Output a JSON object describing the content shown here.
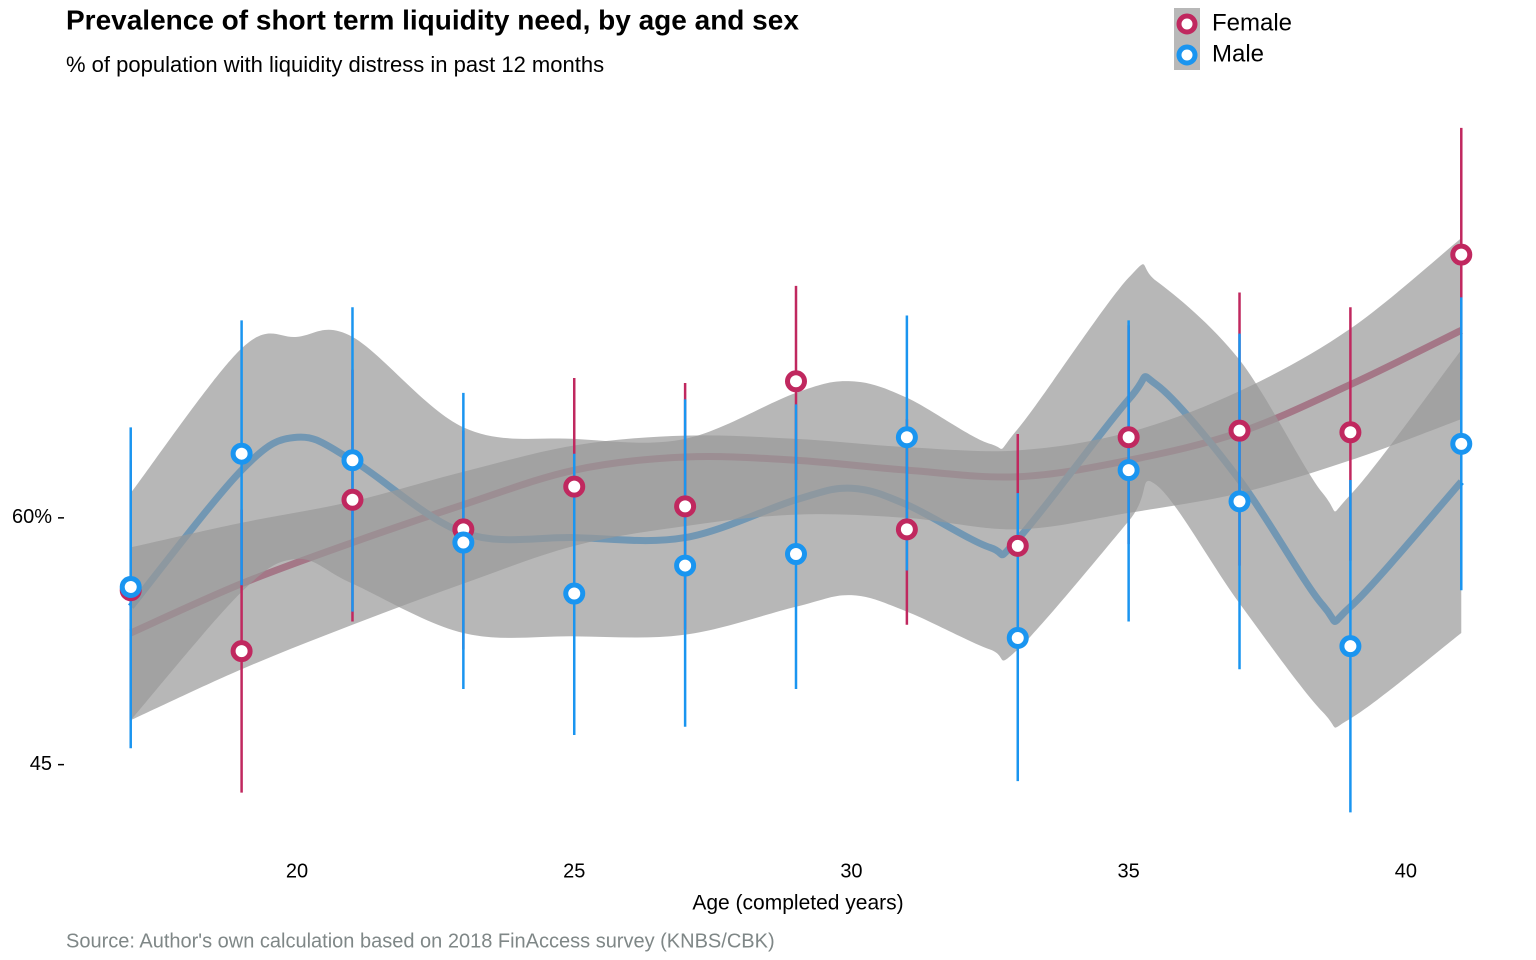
{
  "chart_data": {
    "type": "scatter",
    "title": "Prevalence of short term liquidity need, by age and sex",
    "subtitle": "% of population with liquidity distress in past 12 months",
    "x_label": "Age (completed years)",
    "caption": "Source: Author's own calculation based on 2018 FinAccess survey (KNBS/CBK)",
    "xlim": [
      16.5,
      41.5
    ],
    "xticks": [
      20,
      25,
      30,
      35,
      40
    ],
    "ylim": [
      42,
      84
    ],
    "yticks": [
      45,
      {
        "value": 60,
        "label": "60%"
      }
    ],
    "band_color": "#999999",
    "series": [
      {
        "name": "Female",
        "color": "#c0285f",
        "x": [
          17,
          19,
          21,
          23,
          25,
          27,
          29,
          31,
          33,
          35,
          37,
          39,
          41
        ],
        "values": [
          55.6,
          51.9,
          61.1,
          59.3,
          61.9,
          60.7,
          68.3,
          59.3,
          58.3,
          64.9,
          65.3,
          65.2,
          76.0
        ],
        "upper": [
          63.5,
          60.5,
          69.0,
          65.3,
          68.5,
          68.2,
          74.1,
          66.0,
          65.1,
          71.7,
          73.7,
          72.8,
          83.7
        ],
        "lower": [
          47.7,
          43.3,
          53.7,
          52.0,
          55.6,
          53.2,
          62.3,
          53.5,
          51.4,
          58.4,
          57.1,
          57.4,
          68.4
        ],
        "fit_x": [
          17,
          19,
          21,
          23,
          25,
          27,
          29,
          31,
          33,
          35,
          37,
          39,
          41
        ],
        "fit": [
          53.0,
          56.0,
          58.5,
          60.8,
          62.9,
          63.7,
          63.5,
          62.9,
          62.5,
          63.5,
          65.2,
          68.1,
          71.4
        ],
        "fit_lower": [
          47.7,
          50.8,
          53.5,
          56.0,
          58.3,
          59.5,
          60.2,
          60.0,
          59.3,
          60.3,
          61.5,
          63.5,
          66.0
        ],
        "fit_upper": [
          58.2,
          59.7,
          61.0,
          62.8,
          64.4,
          65.0,
          64.8,
          64.3,
          64.1,
          65.2,
          67.7,
          71.5,
          77.0
        ]
      },
      {
        "name": "Male",
        "color": "#1a95f0",
        "x": [
          17,
          19,
          21,
          23,
          25,
          27,
          29,
          31,
          33,
          35,
          37,
          39,
          41
        ],
        "values": [
          55.8,
          63.9,
          63.5,
          58.5,
          55.4,
          57.1,
          57.8,
          64.9,
          52.7,
          62.9,
          61.0,
          52.2,
          64.5
        ],
        "upper": [
          65.5,
          72.0,
          72.8,
          67.6,
          63.9,
          67.2,
          66.9,
          72.3,
          61.5,
          72.0,
          71.2,
          62.3,
          73.4
        ],
        "lower": [
          46.0,
          55.9,
          54.3,
          49.6,
          46.8,
          47.3,
          49.6,
          56.8,
          44.0,
          53.7,
          50.8,
          42.1,
          55.6
        ],
        "fit_x": [
          17,
          19,
          20,
          21,
          23,
          25,
          27,
          29,
          30,
          31,
          32.5,
          33,
          35,
          35.5,
          37,
          38.5,
          39,
          41
        ],
        "fit": [
          54.6,
          62.9,
          64.9,
          63.5,
          59.1,
          58.8,
          58.8,
          61.1,
          61.8,
          60.8,
          58.2,
          58.7,
          67.2,
          68.1,
          62.3,
          54.7,
          54.6,
          62.2
        ],
        "fit_lower": [
          47.7,
          55.5,
          57.5,
          56.0,
          53.0,
          52.8,
          52.9,
          54.6,
          55.3,
          54.3,
          52.0,
          52.0,
          59.8,
          62.0,
          54.8,
          48.2,
          47.8,
          53.0
        ],
        "fit_upper": [
          61.5,
          70.3,
          71.0,
          71.0,
          65.5,
          64.8,
          64.8,
          67.6,
          68.3,
          67.3,
          64.5,
          65.4,
          74.6,
          74.4,
          69.6,
          61.5,
          61.4,
          70.2
        ]
      }
    ]
  }
}
